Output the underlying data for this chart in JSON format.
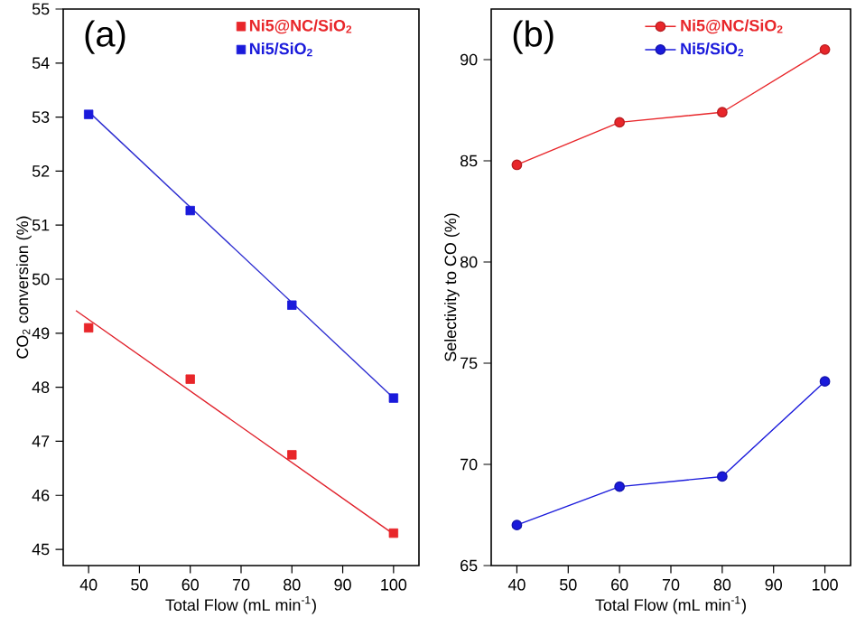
{
  "chart_data": [
    {
      "type": "scatter",
      "xlabel": "Total Flow (mL min$^{-1}$)",
      "ylabel": "CO$_{2}$ conversion (%)",
      "annotations": [
        "(a)"
      ],
      "x": [
        40,
        60,
        80,
        100
      ],
      "xlim": [
        35,
        105
      ],
      "xticks": [
        40,
        50,
        60,
        70,
        80,
        90,
        100
      ],
      "ylim": [
        44.7,
        55
      ],
      "yticks": [
        45,
        46,
        47,
        48,
        49,
        50,
        51,
        52,
        53,
        54,
        55
      ],
      "marker": "square",
      "legend": "top right",
      "grid": false,
      "series": [
        {
          "name": "Ni5@NC/SiO$_{2}$",
          "color": "#e8262a",
          "values": [
            49.1,
            48.15,
            46.75,
            45.3
          ]
        },
        {
          "name": "Ni5/SiO$_{2}$",
          "color": "#1a1adb",
          "values": [
            53.05,
            51.27,
            49.52,
            47.8
          ]
        },
        {
          "type": "line",
          "marker": "none",
          "color": "#e0202a",
          "x": [
            37.5,
            100.5
          ],
          "values": [
            49.42,
            45.25
          ]
        },
        {
          "type": "line",
          "marker": "none",
          "color": "#2b2bd0",
          "x": [
            40,
            100
          ],
          "values": [
            53.1,
            47.8
          ]
        }
      ]
    },
    {
      "type": "line",
      "xlabel": "Total Flow (mL min$^{-1}$)",
      "ylabel": "Selectivity to CO (%)",
      "annotations": [
        "(b)"
      ],
      "x": [
        40,
        60,
        80,
        100
      ],
      "xlim": [
        35,
        105
      ],
      "xticks": [
        40,
        50,
        60,
        70,
        80,
        90,
        100
      ],
      "ylim": [
        65,
        92.5
      ],
      "yticks": [
        65,
        70,
        75,
        80,
        85,
        90
      ],
      "marker": "circle",
      "legend": "top right",
      "grid": false,
      "series": [
        {
          "name": "Ni5@NC/SiO$_{2}$",
          "color": "#e8262a",
          "values": [
            84.8,
            86.9,
            87.4,
            90.5
          ]
        },
        {
          "name": "Ni5/SiO$_{2}$",
          "color": "#1a1adb",
          "values": [
            67.0,
            68.9,
            69.4,
            74.1
          ]
        }
      ]
    }
  ]
}
